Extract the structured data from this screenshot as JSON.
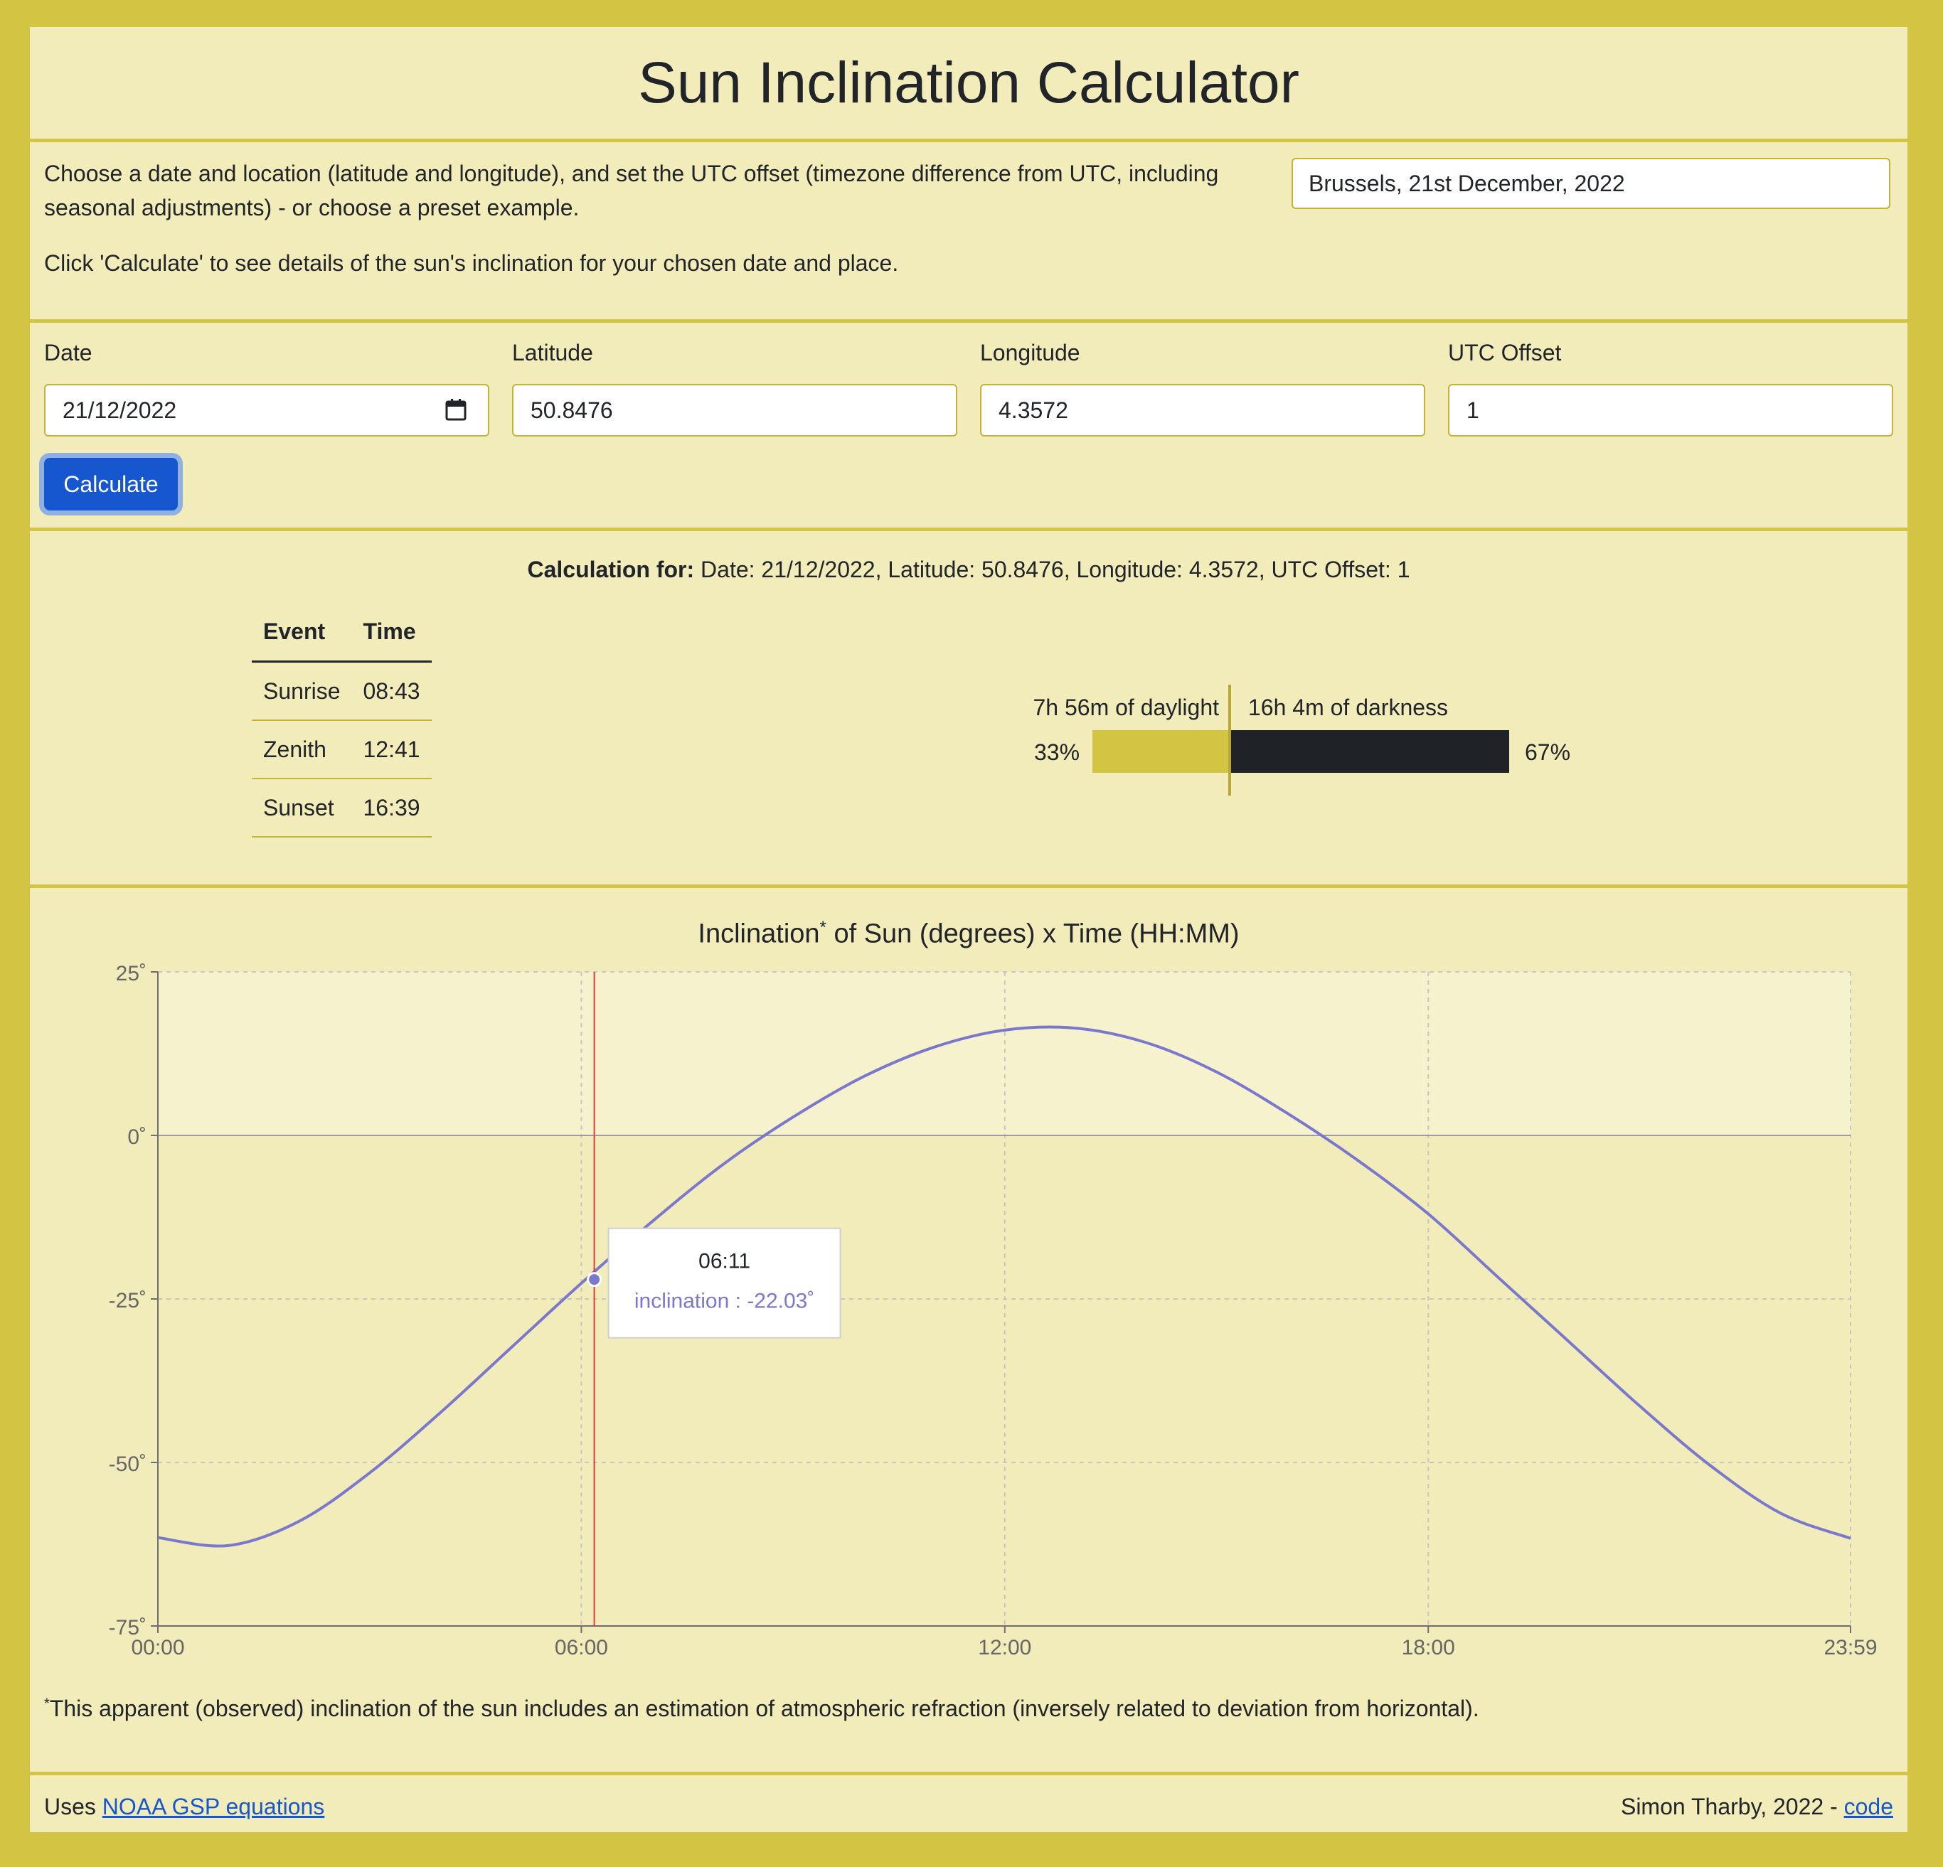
{
  "header": {
    "title": "Sun Inclination Calculator"
  },
  "intro": {
    "line1": "Choose a date and location (latitude and longitude), and set the UTC offset (timezone difference from UTC, including",
    "line2": "seasonal adjustments) - or choose a preset example.",
    "line3": "Click 'Calculate' to see details of the sun's inclination for your chosen date and place.",
    "preset_value": "Brussels, 21st December, 2022"
  },
  "form": {
    "date_label": "Date",
    "date_value": "21/12/2022",
    "lat_label": "Latitude",
    "lat_value": "50.8476",
    "lon_label": "Longitude",
    "lon_value": "4.3572",
    "utc_label": "UTC Offset",
    "utc_value": "1",
    "calculate_label": "Calculate"
  },
  "results": {
    "calc_for_label": "Calculation for:",
    "calc_for_text": " Date: 21/12/2022, Latitude: 50.8476, Longitude: 4.3572, UTC Offset: 1",
    "table_headers": [
      "Event",
      "Time"
    ],
    "events": [
      {
        "event": "Sunrise",
        "time": "08:43"
      },
      {
        "event": "Zenith",
        "time": "12:41"
      },
      {
        "event": "Sunset",
        "time": "16:39"
      }
    ],
    "daylight_label": "7h 56m of daylight",
    "darkness_label": "16h 4m of darkness",
    "daylight_pct": "33%",
    "darkness_pct": "67%",
    "daylight_fraction": 0.33,
    "colors": {
      "daylight": "#d4c444",
      "darkness": "#1f2327"
    }
  },
  "chart": {
    "title_main": "Inclination",
    "title_sup": "*",
    "title_rest": " of Sun (degrees) x Time (HH:MM)",
    "footnote_sup": "*",
    "footnote": "This apparent (observed) inclination of the sun includes an estimation of atmospheric refraction (inversely related to deviation from horizontal)."
  },
  "chart_data": {
    "type": "line",
    "x_tick_labels": [
      "00:00",
      "06:00",
      "12:00",
      "18:00",
      "23:59"
    ],
    "x_tick_values": [
      0,
      360,
      720,
      1080,
      1439
    ],
    "y_tick_labels": [
      "25˚",
      "0˚",
      "-25˚",
      "-50˚",
      "-75˚"
    ],
    "y_tick_values": [
      25,
      0,
      -25,
      -50,
      -75
    ],
    "ylim": [
      -75,
      25
    ],
    "xlim": [
      0,
      1439
    ],
    "grid": true,
    "series": [
      {
        "color": "#7a78cc",
        "x": [
          0,
          60,
          120,
          180,
          240,
          300,
          360,
          420,
          480,
          540,
          600,
          660,
          720,
          780,
          840,
          900,
          960,
          1020,
          1080,
          1140,
          1200,
          1260,
          1320,
          1380,
          1439
        ],
        "y": [
          -61.5,
          -62.7,
          -59.0,
          -51.6,
          -42.4,
          -32.5,
          -22.6,
          -13.2,
          -4.5,
          2.8,
          9.0,
          13.5,
          16.1,
          16.4,
          14.2,
          9.7,
          3.4,
          -3.8,
          -12.0,
          -21.8,
          -31.6,
          -41.4,
          -50.5,
          -57.8,
          -61.6
        ]
      }
    ],
    "tooltip": {
      "time": "06:11",
      "label": "inclination : -22.03˚",
      "x": 371,
      "y": -22.03
    },
    "marker_line_color": "#e53935"
  },
  "footer": {
    "uses_text": "Uses ",
    "uses_link": "NOAA GSP equations",
    "credit": "Simon Tharby, 2022 - ",
    "code_link": "code"
  }
}
